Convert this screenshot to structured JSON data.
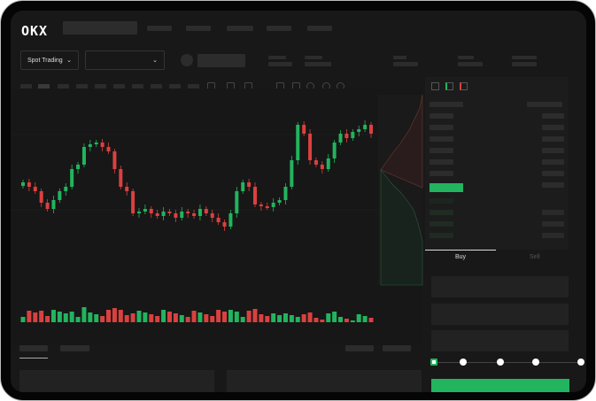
{
  "header": {
    "logo": "OKX"
  },
  "toolbar": {
    "market_select": "Spot Trading",
    "pair_select": ""
  },
  "order_form": {
    "tabs": [
      "Buy",
      "Sell"
    ],
    "active_tab": "Buy",
    "leverage_steps": 5,
    "selected_step": 0
  },
  "colors": {
    "up": "#22b45e",
    "down": "#d9413f",
    "background": "#181818"
  },
  "icons": [
    "chevron-down-icon",
    "orderbook-both-icon",
    "orderbook-bids-icon",
    "orderbook-asks-icon",
    "draw-line-icon",
    "settings-icon"
  ],
  "chart": {
    "closes": [
      95,
      90,
      85,
      72,
      65,
      75,
      85,
      90,
      110,
      115,
      135,
      138,
      140,
      135,
      130,
      110,
      90,
      85,
      60,
      62,
      65,
      60,
      57,
      62,
      60,
      55,
      62,
      60,
      57,
      65,
      60,
      55,
      50,
      45,
      60,
      85,
      95,
      90,
      70,
      68,
      67,
      72,
      75,
      90,
      120,
      160,
      150,
      120,
      115,
      110,
      122,
      140,
      150,
      145,
      152,
      155,
      160,
      150
    ]
  }
}
